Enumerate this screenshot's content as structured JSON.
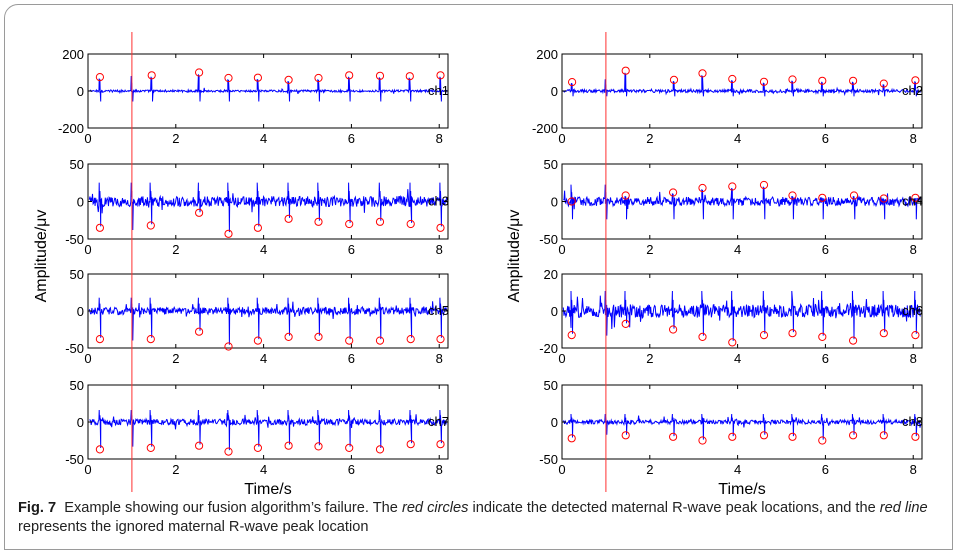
{
  "caption": {
    "figure_number": "Fig. 7",
    "segments": [
      {
        "text": "Example showing our fusion algorithm’s failure. The ",
        "italic": false
      },
      {
        "text": "red circles",
        "italic": true
      },
      {
        "text": " indicate the detected maternal R-wave peak locations, and the ",
        "italic": false
      },
      {
        "text": "red line",
        "italic": true
      },
      {
        "text": " represents the ignored maternal R-wave peak location",
        "italic": false
      }
    ]
  },
  "colors": {
    "signal": "#0000ff",
    "marker": "#ff0000",
    "ignored_line": "#ff3030",
    "axis": "#000000"
  },
  "chart_data": {
    "type": "line",
    "title": "",
    "xlabel": "Time/s",
    "ylabel": "Amplitude/μv",
    "xlim": [
      0,
      8.2
    ],
    "xticks": [
      0,
      2,
      4,
      6,
      8
    ],
    "ignored_peak_time": 1.0,
    "panels": [
      {
        "name": "ch1",
        "ylim": [
          -200,
          200
        ],
        "yticks": [
          -200,
          0,
          200
        ],
        "noise": 6,
        "spike_up": 90,
        "spike_down": -60,
        "peaks": [
          {
            "x": 0.27,
            "y": 75
          },
          {
            "x": 1.45,
            "y": 85
          },
          {
            "x": 2.53,
            "y": 100
          },
          {
            "x": 3.2,
            "y": 70
          },
          {
            "x": 3.87,
            "y": 72
          },
          {
            "x": 4.57,
            "y": 60
          },
          {
            "x": 5.25,
            "y": 70
          },
          {
            "x": 5.95,
            "y": 85
          },
          {
            "x": 6.65,
            "y": 82
          },
          {
            "x": 7.33,
            "y": 80
          },
          {
            "x": 8.03,
            "y": 85
          }
        ]
      },
      {
        "name": "ch2",
        "ylim": [
          -200,
          200
        ],
        "yticks": [
          -200,
          0,
          200
        ],
        "noise": 8,
        "spike_up": 70,
        "spike_down": -30,
        "peaks": [
          {
            "x": 0.23,
            "y": 48
          },
          {
            "x": 1.45,
            "y": 110
          },
          {
            "x": 2.55,
            "y": 60
          },
          {
            "x": 3.2,
            "y": 95
          },
          {
            "x": 3.88,
            "y": 65
          },
          {
            "x": 4.6,
            "y": 50
          },
          {
            "x": 5.25,
            "y": 62
          },
          {
            "x": 5.93,
            "y": 55
          },
          {
            "x": 6.63,
            "y": 55
          },
          {
            "x": 7.33,
            "y": 40
          },
          {
            "x": 8.05,
            "y": 58
          }
        ]
      },
      {
        "name": "ch3",
        "ylim": [
          -50,
          50
        ],
        "yticks": [
          -50,
          0,
          50
        ],
        "noise": 7,
        "spike_up": 28,
        "spike_down": -40,
        "peaks": [
          {
            "x": 0.27,
            "y": -35
          },
          {
            "x": 1.43,
            "y": -32
          },
          {
            "x": 2.53,
            "y": -15
          },
          {
            "x": 3.2,
            "y": -43
          },
          {
            "x": 3.87,
            "y": -35
          },
          {
            "x": 4.57,
            "y": -23
          },
          {
            "x": 5.25,
            "y": -27
          },
          {
            "x": 5.95,
            "y": -30
          },
          {
            "x": 6.65,
            "y": -27
          },
          {
            "x": 7.35,
            "y": -30
          },
          {
            "x": 8.03,
            "y": -35
          }
        ]
      },
      {
        "name": "ch4",
        "ylim": [
          -50,
          50
        ],
        "yticks": [
          -50,
          0,
          50
        ],
        "noise": 6,
        "spike_up": 25,
        "spike_down": -25,
        "peaks": [
          {
            "x": 0.22,
            "y": 0
          },
          {
            "x": 1.45,
            "y": 8
          },
          {
            "x": 2.53,
            "y": 12
          },
          {
            "x": 3.2,
            "y": 18
          },
          {
            "x": 3.88,
            "y": 20
          },
          {
            "x": 4.6,
            "y": 22
          },
          {
            "x": 5.25,
            "y": 8
          },
          {
            "x": 5.93,
            "y": 5
          },
          {
            "x": 6.65,
            "y": 8
          },
          {
            "x": 7.33,
            "y": 4
          },
          {
            "x": 8.05,
            "y": 5
          }
        ]
      },
      {
        "name": "ch5",
        "ylim": [
          -50,
          50
        ],
        "yticks": [
          -50,
          0,
          50
        ],
        "noise": 5,
        "spike_up": 20,
        "spike_down": -42,
        "peaks": [
          {
            "x": 0.27,
            "y": -38
          },
          {
            "x": 1.43,
            "y": -38
          },
          {
            "x": 2.53,
            "y": -28
          },
          {
            "x": 3.2,
            "y": -48
          },
          {
            "x": 3.87,
            "y": -40
          },
          {
            "x": 4.57,
            "y": -35
          },
          {
            "x": 5.25,
            "y": -35
          },
          {
            "x": 5.95,
            "y": -40
          },
          {
            "x": 6.65,
            "y": -40
          },
          {
            "x": 7.35,
            "y": -38
          },
          {
            "x": 8.03,
            "y": -38
          }
        ]
      },
      {
        "name": "ch6",
        "ylim": [
          -20,
          20
        ],
        "yticks": [
          -20,
          0,
          20
        ],
        "noise": 3.5,
        "spike_up": 12,
        "spike_down": -14,
        "peaks": [
          {
            "x": 0.22,
            "y": -13
          },
          {
            "x": 1.45,
            "y": -7
          },
          {
            "x": 2.53,
            "y": -10
          },
          {
            "x": 3.2,
            "y": -14
          },
          {
            "x": 3.88,
            "y": -17
          },
          {
            "x": 4.6,
            "y": -13
          },
          {
            "x": 5.25,
            "y": -12
          },
          {
            "x": 5.93,
            "y": -14
          },
          {
            "x": 6.63,
            "y": -16
          },
          {
            "x": 7.33,
            "y": -12
          },
          {
            "x": 8.05,
            "y": -13
          }
        ]
      },
      {
        "name": "ch7",
        "ylim": [
          -50,
          50
        ],
        "yticks": [
          -50,
          0,
          50
        ],
        "noise": 4,
        "spike_up": 18,
        "spike_down": -35,
        "peaks": [
          {
            "x": 0.27,
            "y": -37
          },
          {
            "x": 1.43,
            "y": -35
          },
          {
            "x": 2.53,
            "y": -32
          },
          {
            "x": 3.2,
            "y": -40
          },
          {
            "x": 3.87,
            "y": -35
          },
          {
            "x": 4.57,
            "y": -32
          },
          {
            "x": 5.25,
            "y": -33
          },
          {
            "x": 5.95,
            "y": -35
          },
          {
            "x": 6.65,
            "y": -37
          },
          {
            "x": 7.35,
            "y": -30
          },
          {
            "x": 8.03,
            "y": -30
          }
        ]
      },
      {
        "name": "ch8",
        "ylim": [
          -50,
          50
        ],
        "yticks": [
          -50,
          0,
          50
        ],
        "noise": 3,
        "spike_up": 12,
        "spike_down": -18,
        "peaks": [
          {
            "x": 0.22,
            "y": -22
          },
          {
            "x": 1.45,
            "y": -18
          },
          {
            "x": 2.53,
            "y": -20
          },
          {
            "x": 3.2,
            "y": -25
          },
          {
            "x": 3.88,
            "y": -20
          },
          {
            "x": 4.6,
            "y": -18
          },
          {
            "x": 5.25,
            "y": -20
          },
          {
            "x": 5.93,
            "y": -25
          },
          {
            "x": 6.63,
            "y": -18
          },
          {
            "x": 7.33,
            "y": -18
          },
          {
            "x": 8.05,
            "y": -20
          }
        ]
      }
    ]
  }
}
